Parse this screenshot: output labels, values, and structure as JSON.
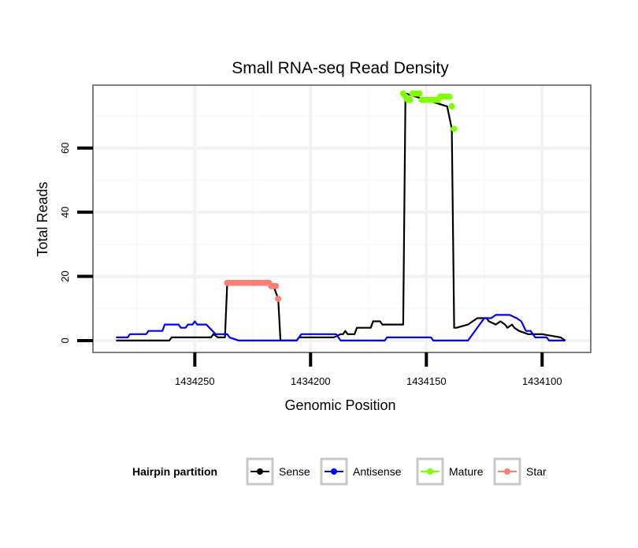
{
  "chart_data": {
    "type": "line",
    "title": "Small RNA-seq Read Density",
    "xlabel": "Genomic Position",
    "ylabel": "Total Reads",
    "xlim": [
      1434294,
      1434079
    ],
    "x_reversed": true,
    "ylim": [
      -3.7,
      79.6
    ],
    "xticks": [
      1434250,
      1434200,
      1434150,
      1434100
    ],
    "xtick_labels": [
      "1434250",
      "1434200",
      "1434150",
      "1434100"
    ],
    "yticks": [
      0,
      20,
      40,
      60
    ],
    "ytick_labels": [
      "0",
      "20",
      "40",
      "60"
    ],
    "grid": true,
    "legend": {
      "title": "Hairpin partition",
      "placement": "bottom",
      "entries": [
        {
          "label": "Sense",
          "color": "#000000"
        },
        {
          "label": "Antisense",
          "color": "#0000ff"
        },
        {
          "label": "Mature",
          "color": "#7fff00"
        },
        {
          "label": "Star",
          "color": "#fa8072"
        }
      ]
    },
    "series": [
      {
        "name": "Sense",
        "color": "#000000",
        "style": "line",
        "x": [
          1434284,
          1434261,
          1434260,
          1434243,
          1434242,
          1434240,
          1434237,
          1434236,
          1434218,
          1434216,
          1434214,
          1434213,
          1434206,
          1434205,
          1434190,
          1434187,
          1434186,
          1434185,
          1434184,
          1434181,
          1434180,
          1434174,
          1434173,
          1434170,
          1434169,
          1434160,
          1434159,
          1434141,
          1434139,
          1434138,
          1434137,
          1434132,
          1434130,
          1434128,
          1434124,
          1434123,
          1434120,
          1434118,
          1434116,
          1434115,
          1434113,
          1434112,
          1434110,
          1434106,
          1434100,
          1434092,
          1434090
        ],
        "y": [
          0,
          0,
          1,
          1,
          2,
          1,
          1,
          18,
          18,
          17,
          13,
          0,
          0,
          1,
          1,
          2,
          2,
          3,
          2,
          2,
          4,
          4,
          6,
          6,
          5,
          5,
          77,
          73,
          66,
          4,
          4,
          5,
          6,
          7,
          7,
          6,
          5,
          6,
          5,
          4,
          5,
          4,
          3,
          2,
          2,
          1,
          0
        ]
      },
      {
        "name": "Antisense",
        "color": "#0000ff",
        "style": "line",
        "x": [
          1434284,
          1434279,
          1434278,
          1434271,
          1434270,
          1434264,
          1434263,
          1434257,
          1434256,
          1434254,
          1434253,
          1434251,
          1434250,
          1434249,
          1434245,
          1434241,
          1434240,
          1434236,
          1434235,
          1434231,
          1434206,
          1434204,
          1434189,
          1434187,
          1434168,
          1434167,
          1434148,
          1434147,
          1434132,
          1434125,
          1434122,
          1434120,
          1434114,
          1434111,
          1434109,
          1434107,
          1434105,
          1434103,
          1434098,
          1434097,
          1434090
        ],
        "y": [
          1,
          1,
          2,
          2,
          3,
          3,
          5,
          5,
          4,
          4,
          5,
          5,
          6,
          5,
          5,
          2,
          2,
          2,
          1,
          0,
          0,
          2,
          2,
          0,
          0,
          1,
          1,
          0,
          0,
          7,
          7,
          8,
          8,
          7,
          6,
          3,
          3,
          1,
          1,
          0,
          0
        ]
      },
      {
        "name": "Mature",
        "color": "#7fff00",
        "style": "points",
        "x": [
          1434160,
          1434159,
          1434158,
          1434157,
          1434156,
          1434155,
          1434154,
          1434153,
          1434152,
          1434151,
          1434150,
          1434149,
          1434148,
          1434147,
          1434146,
          1434145,
          1434144,
          1434143,
          1434142,
          1434141,
          1434140,
          1434139,
          1434138
        ],
        "y": [
          77,
          76,
          75,
          75,
          77,
          77,
          77,
          77,
          75,
          75,
          75,
          75,
          75,
          75,
          75,
          75,
          76,
          76,
          76,
          76,
          76,
          73,
          66
        ]
      },
      {
        "name": "Star",
        "color": "#fa8072",
        "style": "points",
        "x": [
          1434236,
          1434235,
          1434234,
          1434233,
          1434232,
          1434231,
          1434230,
          1434229,
          1434228,
          1434227,
          1434226,
          1434225,
          1434224,
          1434223,
          1434222,
          1434221,
          1434220,
          1434219,
          1434218,
          1434217,
          1434216,
          1434215,
          1434214
        ],
        "y": [
          18,
          18,
          18,
          18,
          18,
          18,
          18,
          18,
          18,
          18,
          18,
          18,
          18,
          18,
          18,
          18,
          18,
          18,
          18,
          17,
          17,
          17,
          13
        ]
      }
    ]
  }
}
